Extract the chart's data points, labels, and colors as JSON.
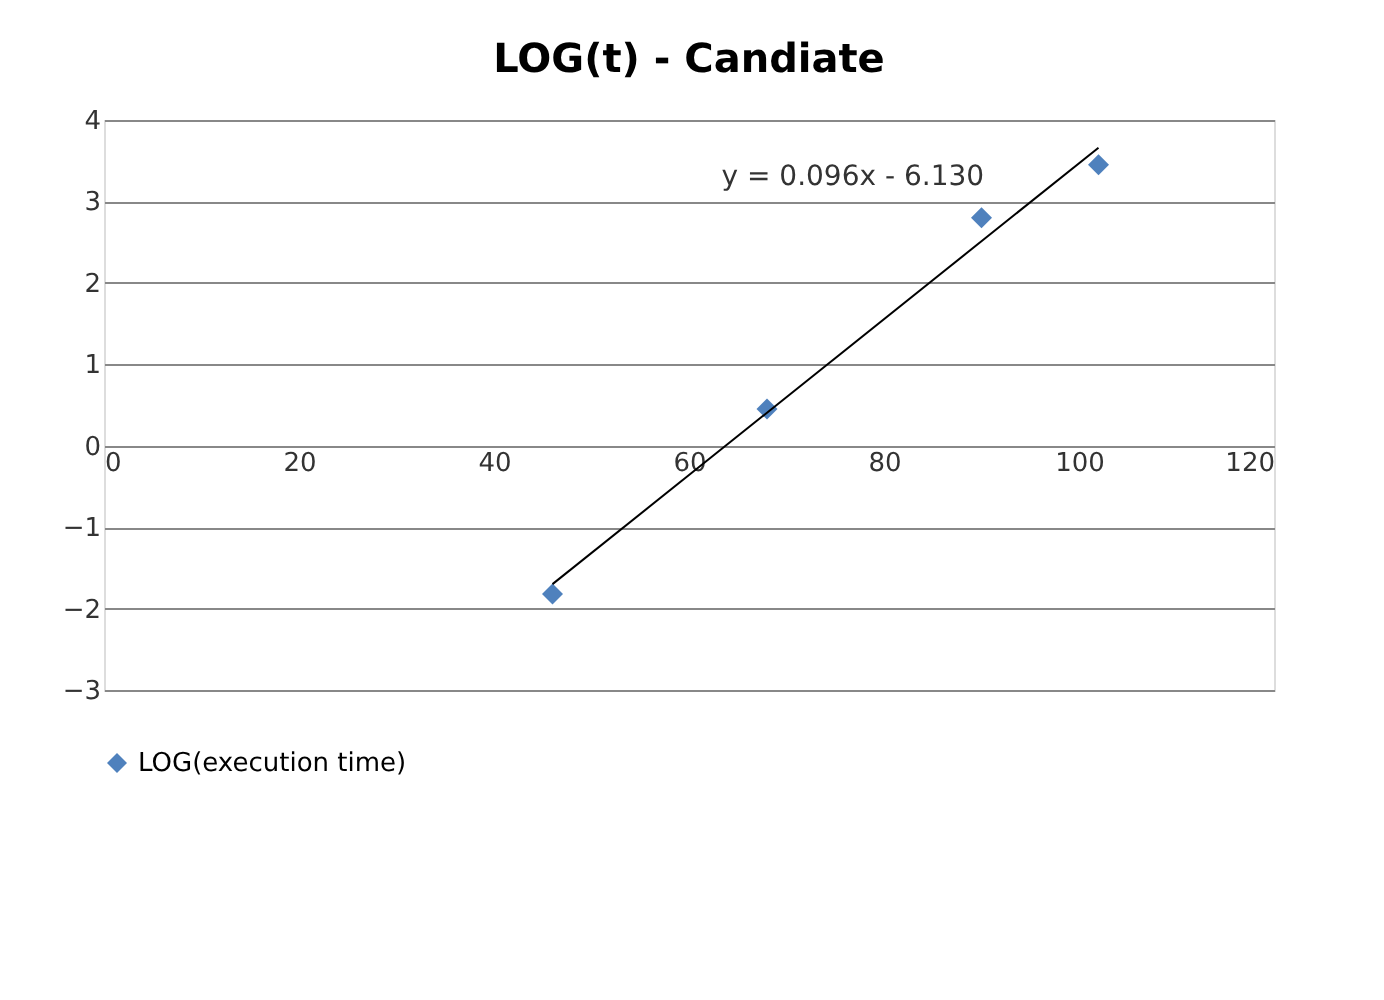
{
  "chart_data": {
    "type": "scatter",
    "title": "LOG(t) - Candiate",
    "xlim": [
      0,
      120
    ],
    "xticks": [
      0,
      20,
      40,
      60,
      80,
      100,
      120
    ],
    "ylim": [
      -3,
      4
    ],
    "yticks": [
      -3,
      -2,
      -1,
      0,
      1,
      2,
      3,
      4
    ],
    "grid": "y",
    "legend": "bottom left",
    "series": [
      {
        "name": "LOG(execution time)",
        "marker": "diamond",
        "color": "#4f81bd",
        "x": [
          46,
          68,
          90,
          102
        ],
        "values": [
          -1.82,
          0.45,
          2.8,
          3.45
        ]
      },
      {
        "type": "line",
        "color": "#000000",
        "x": [
          46,
          102
        ],
        "values": [
          -1.7,
          3.66
        ]
      }
    ],
    "annotations": [
      "y = 0.096x - 6.130"
    ]
  }
}
